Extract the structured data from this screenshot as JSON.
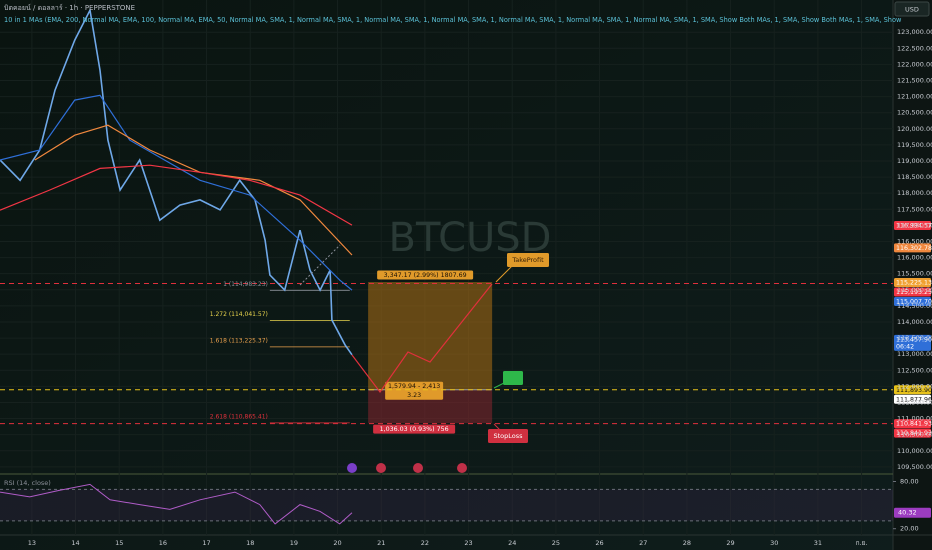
{
  "header": {
    "symbol": "บิตคอยน์ / ดอลลาร์ · 1h · PEPPERSTONE",
    "indicator": "10 in 1 MAs (EMA, 200, Normal MA, EMA, 100, Normal MA, EMA, 50, Normal MA, SMA, 1, Normal MA, SMA, 1, Normal MA, SMA, 1, Normal MA, SMA, 1, Normal MA, SMA, 1, Normal MA, SMA, 1, Normal MA, SMA, 1, SMA, Show Both MAs, 1, SMA, Show Both MAs, 1, SMA, Show",
    "currency": "USD",
    "watermark": "BTCUSD"
  },
  "chart_data": {
    "type": "line",
    "xlim": [
      12.27,
      32.72
    ],
    "ylim": [
      109340,
      124000
    ],
    "xticks": [
      13,
      14,
      15,
      16,
      17,
      18,
      19,
      20,
      21,
      22,
      23,
      24,
      25,
      26,
      27,
      28,
      29,
      30,
      31,
      {
        "value": 32,
        "label": "ก.ย."
      }
    ],
    "yticks": [
      {
        "value": 109500,
        "label": "109,500.00"
      },
      {
        "value": 110000,
        "label": "110,000.00"
      },
      {
        "value": 110500,
        "label": "110,500.00"
      },
      {
        "value": 111000,
        "label": "111,000.00"
      },
      {
        "value": 111500,
        "label": "111,500.00"
      },
      {
        "value": 112000,
        "label": "112,000.00"
      },
      {
        "value": 112500,
        "label": "112,500.00"
      },
      {
        "value": 113000,
        "label": "113,000.00"
      },
      {
        "value": 113500,
        "label": "113,500.00"
      },
      {
        "value": 114000,
        "label": "114,000.00"
      },
      {
        "value": 114500,
        "label": "114,500.00"
      },
      {
        "value": 115000,
        "label": "115,000.00"
      },
      {
        "value": 115500,
        "label": "115,500.00"
      },
      {
        "value": 116000,
        "label": "116,000.00"
      },
      {
        "value": 116500,
        "label": "116,500.00"
      },
      {
        "value": 117000,
        "label": "117,000.00"
      },
      {
        "value": 117500,
        "label": "117,500.00"
      },
      {
        "value": 118000,
        "label": "118,000.00"
      },
      {
        "value": 118500,
        "label": "118,500.00"
      },
      {
        "value": 119000,
        "label": "119,000.00"
      },
      {
        "value": 119500,
        "label": "119,500.00"
      },
      {
        "value": 120000,
        "label": "120,000.00"
      },
      {
        "value": 120500,
        "label": "120,500.00"
      },
      {
        "value": 121000,
        "label": "121,000.00"
      },
      {
        "value": 121500,
        "label": "121,500.00"
      },
      {
        "value": 122000,
        "label": "122,000.00"
      },
      {
        "value": 122500,
        "label": "122,500.00"
      },
      {
        "value": 123000,
        "label": "123,000.00"
      }
    ],
    "series": [
      {
        "color": "#6fa8e8",
        "x": [
          12.27,
          12.73,
          13.18,
          13.53,
          13.98,
          14.33,
          14.56,
          14.74,
          15.02,
          15.47,
          15.93,
          16.39,
          16.85,
          17.31,
          17.76,
          18.11,
          18.34,
          18.45,
          18.79,
          19.14,
          19.37,
          19.6,
          19.83,
          19.87,
          20.17,
          20.33
        ],
        "values": [
          119030,
          118400,
          119340,
          121200,
          122750,
          123680,
          121820,
          119650,
          118100,
          119030,
          117160,
          117630,
          117790,
          117480,
          118400,
          117790,
          116540,
          115460,
          114990,
          116850,
          115610,
          114990,
          115610,
          114060,
          113290,
          112980
        ]
      },
      {
        "color": "#2f6fd8",
        "x": [
          12.27,
          13.18,
          13.98,
          14.56,
          15.24,
          16.85,
          17.99,
          19.14,
          20.05,
          20.33
        ],
        "values": [
          119030,
          119340,
          120890,
          121040,
          119650,
          118400,
          117940,
          116540,
          115300,
          114990
        ]
      },
      {
        "color": "#f0883e",
        "x": [
          13.07,
          13.98,
          14.74,
          15.7,
          16.85,
          18.22,
          19.14,
          20.33
        ],
        "values": [
          119030,
          119800,
          120110,
          119340,
          118650,
          118400,
          117790,
          116080
        ]
      },
      {
        "color": "#f23645",
        "x": [
          12.27,
          13.41,
          14.56,
          15.7,
          16.85,
          17.99,
          19.14,
          20.33
        ],
        "values": [
          117470,
          118100,
          118770,
          118870,
          118650,
          118400,
          117940,
          117010
        ]
      }
    ],
    "levels": [
      {
        "value": 115193.25,
        "color": "#e0303c"
      },
      {
        "value": 111893.9,
        "color": "#e8c21a"
      },
      {
        "value": 110841.93,
        "color": "#e0303c"
      }
    ],
    "price_tags": [
      {
        "value": 116994.57,
        "label": "116,994.57",
        "color": "#f23645"
      },
      {
        "value": 116302.78,
        "label": "116,302.78",
        "color": "#f0883e"
      },
      {
        "value": 115225.13,
        "label": "115,225.13",
        "color": "#f0a030"
      },
      {
        "value": 115193.25,
        "label": "115,193.25",
        "color": "#f23645"
      },
      {
        "value": 115007.7,
        "label": "115,007.70",
        "color": "#2f6fd8"
      },
      {
        "value": 113457.9,
        "label": "113,457.90",
        "color": "#2f6fd8",
        "sub": "06:42"
      },
      {
        "value": 111893.9,
        "label": "111,893.90",
        "color": "#e8c21a"
      },
      {
        "value": 111877.96,
        "label": "111,877.96",
        "color": "#ffffff"
      },
      {
        "value": 110841.93,
        "label": "110,841.93",
        "color": "#f23645"
      },
      {
        "value": 110841.93,
        "label": "110,841.93",
        "color": "#f23645"
      }
    ],
    "fib": [
      {
        "label": "1 (114,983.23)",
        "value": 114983.23,
        "color": "#8a8f98",
        "from": 18.45,
        "to": 20.28
      },
      {
        "label": "1.272 (114,041.57)",
        "value": 114041.57,
        "color": "#e8d44d",
        "from": 18.45,
        "to": 20.28
      },
      {
        "label": "1.618 (113,225.37)",
        "value": 113225.37,
        "color": "#e8a04d",
        "from": 18.45,
        "to": 20.28
      },
      {
        "label": "2.618 (110,865.41)",
        "value": 110865.41,
        "color": "#e0303c",
        "from": 18.45,
        "to": 20.28
      }
    ],
    "position": {
      "from": 20.7,
      "to": 23.54,
      "entry": 111893.9,
      "profit": 3347.17,
      "loss": 1036.03,
      "profit_label": "3,347.17 (2.99%) 1807.69",
      "mid_label": "1,579.94 - 2,413",
      "ratio_label": "3.23",
      "loss_label": "1,036.03 (0.93%) 756",
      "take_profit": "TakeProfit",
      "stop_loss": "StopLoss"
    },
    "rsi": {
      "title": "RSI (14, close)",
      "ylim": [
        12,
        87
      ],
      "yticks": [
        {
          "value": 80,
          "label": "80.00"
        },
        {
          "value": 20,
          "label": "20.00"
        }
      ],
      "bands": [
        70,
        30
      ],
      "current": {
        "value": 40.32,
        "label": "40.32"
      },
      "color": "#b05cc8",
      "x": [
        12.27,
        12.95,
        13.64,
        14.33,
        14.79,
        15.47,
        16.16,
        16.85,
        17.65,
        18.22,
        18.57,
        19.14,
        19.6,
        20.05,
        20.33
      ],
      "values": [
        66.5,
        60.4,
        69,
        76.3,
        56.7,
        50.6,
        44.5,
        56.7,
        66.5,
        50.6,
        26.1,
        50.6,
        42,
        26.1,
        40.3
      ]
    }
  }
}
